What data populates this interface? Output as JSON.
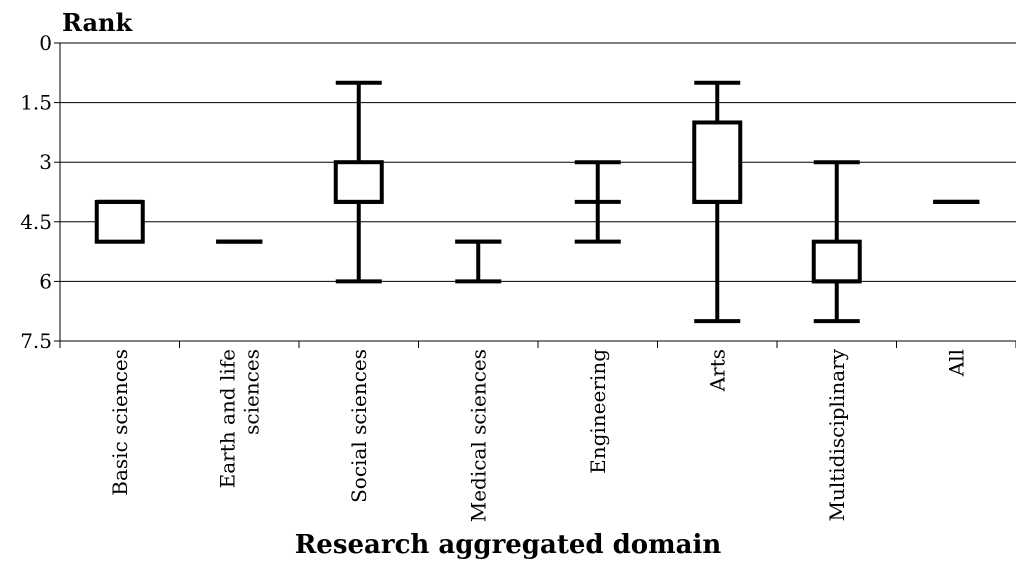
{
  "chart_data": {
    "type": "boxplot",
    "ylabel": "Rank",
    "xlabel": "Research aggregated domain",
    "ylim": [
      0,
      7.5
    ],
    "y_inverted": true,
    "y_ticks": [
      "0",
      "1.5",
      "3",
      "4.5",
      "6",
      "7.5"
    ],
    "y_tick_values": [
      0,
      1.5,
      3,
      4.5,
      6,
      7.5
    ],
    "grid": true,
    "categories": [
      [
        "Basic sciences"
      ],
      [
        "Earth and life",
        "sciences"
      ],
      [
        "Social sciences"
      ],
      [
        "Medical sciences"
      ],
      [
        "Engineering"
      ],
      [
        "Arts"
      ],
      [
        "Multidisciplinary"
      ],
      [
        "All"
      ]
    ],
    "boxes": [
      {
        "min": 4,
        "q1": 4,
        "median": 4,
        "q3": 5,
        "max": 5
      },
      {
        "min": 5,
        "q1": 5,
        "median": 5,
        "q3": 5,
        "max": 5
      },
      {
        "min": 1,
        "q1": 3,
        "median": 4,
        "q3": 4,
        "max": 6
      },
      {
        "min": 5,
        "q1": 5,
        "median": 5,
        "q3": 5,
        "max": 6
      },
      {
        "min": 3,
        "q1": 4,
        "median": 4,
        "q3": 4,
        "max": 5
      },
      {
        "min": 1,
        "q1": 2,
        "median": 4,
        "q3": 4,
        "max": 7
      },
      {
        "min": 3,
        "q1": 5,
        "median": 6,
        "q3": 6,
        "max": 7
      },
      {
        "min": 4,
        "q1": 4,
        "median": 4,
        "q3": 4,
        "max": 4
      }
    ]
  }
}
